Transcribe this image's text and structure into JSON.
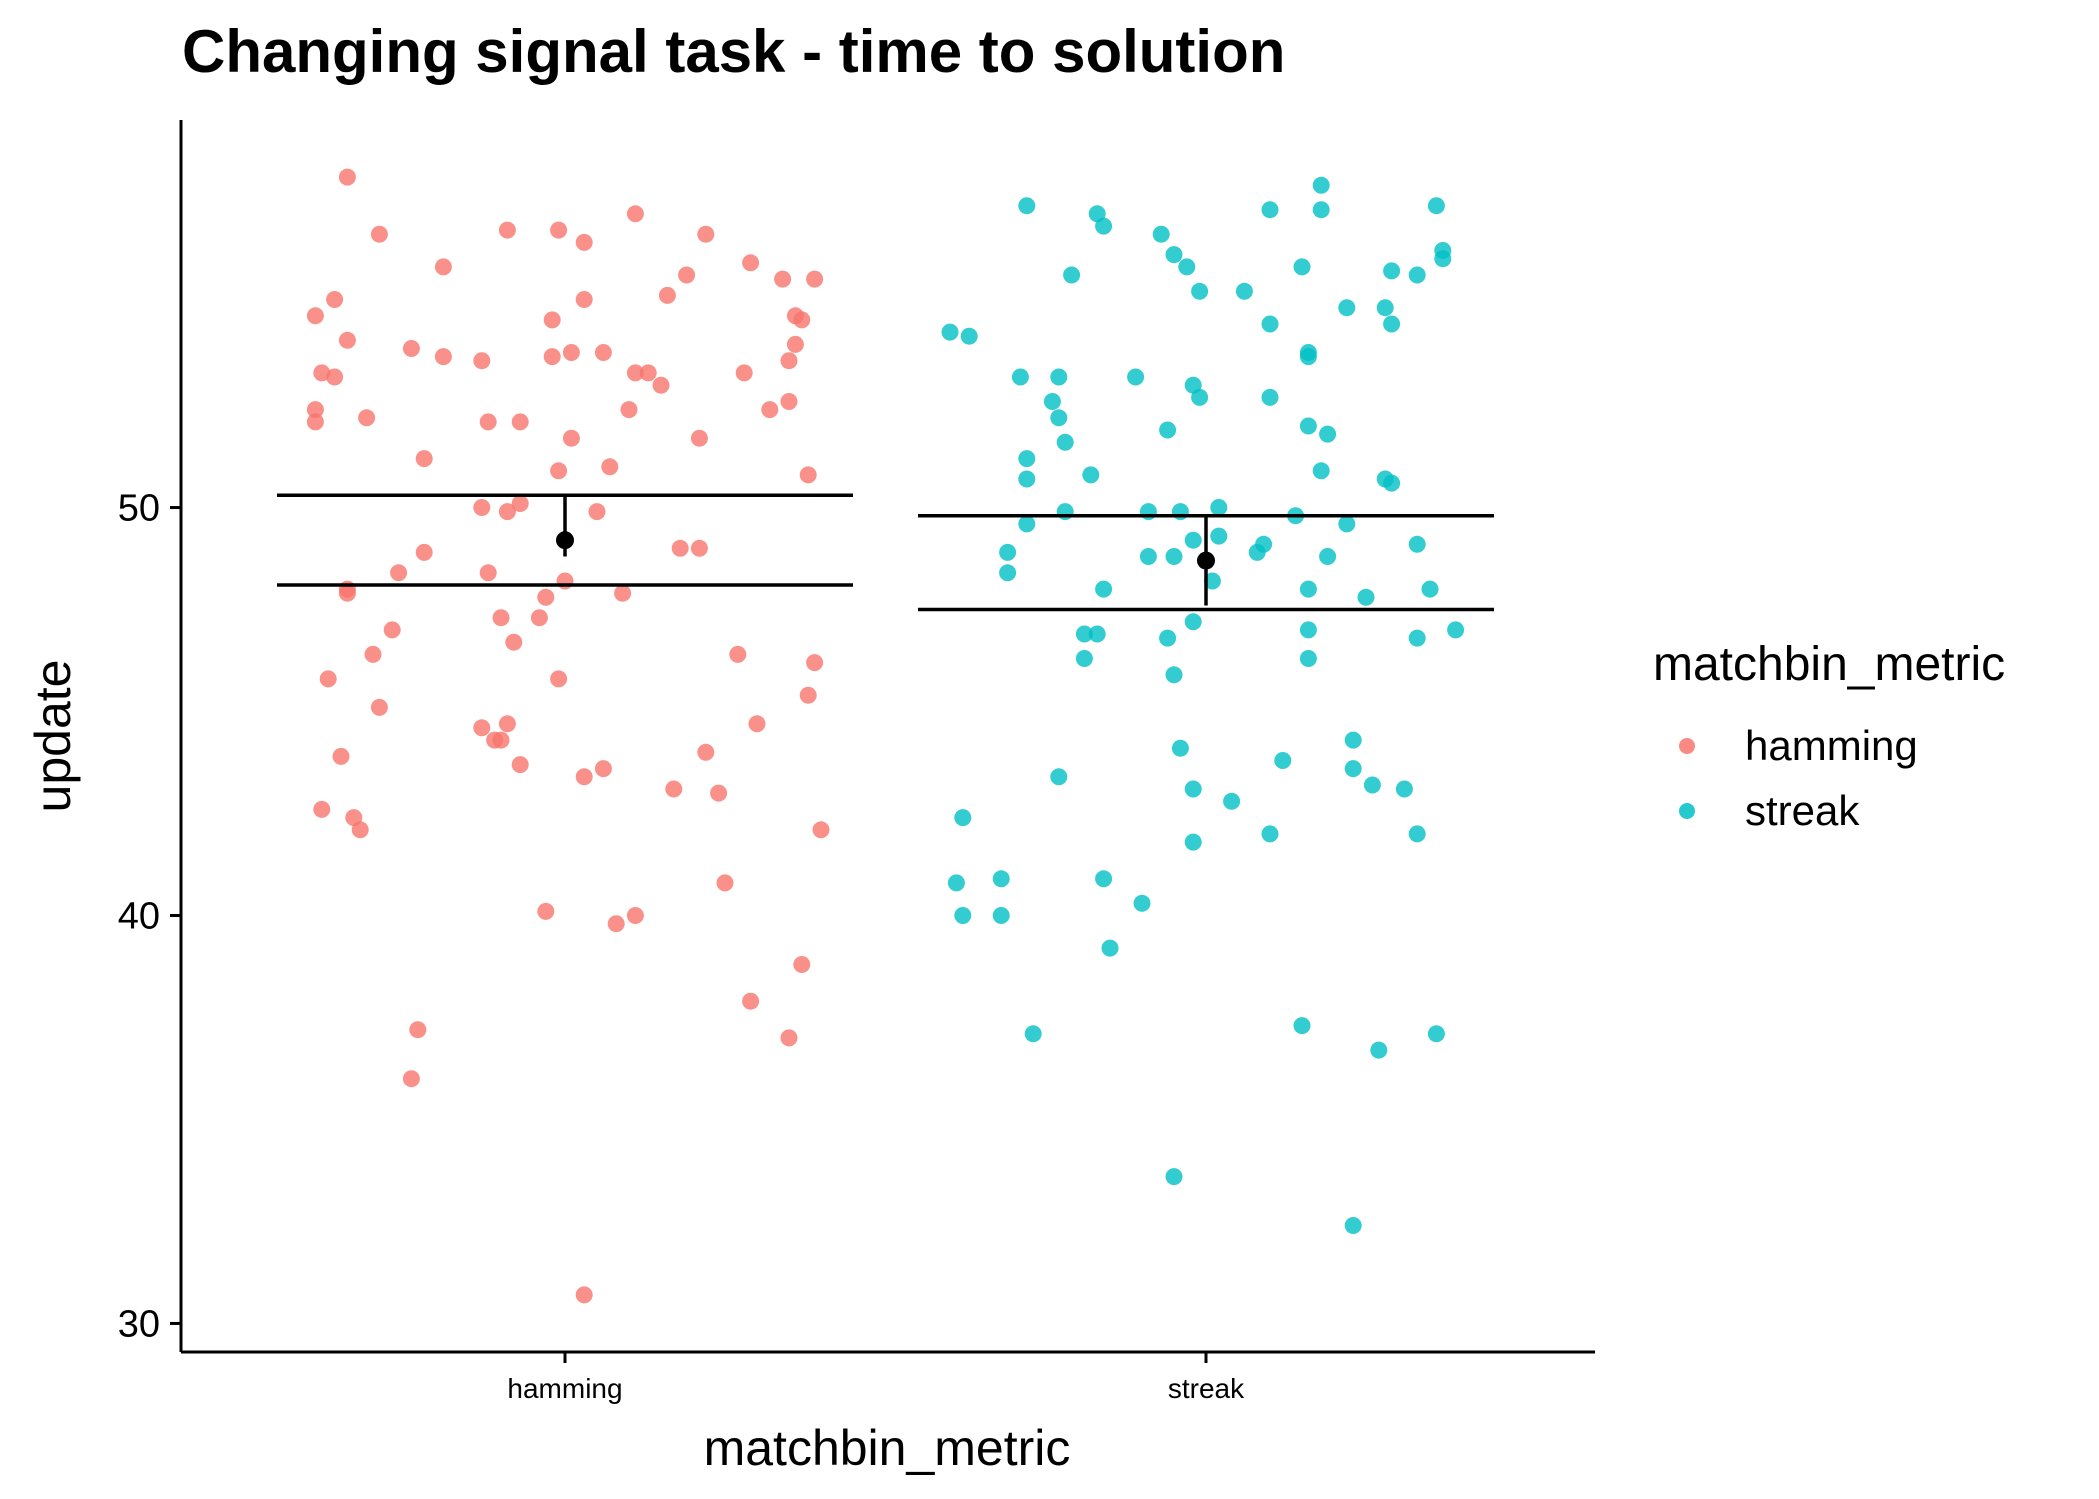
{
  "chart_data": {
    "type": "scatter",
    "title": "Changing signal task - time to solution",
    "xlabel": "matchbin_metric",
    "ylabel": "update",
    "categories": [
      "hamming",
      "streak"
    ],
    "ylim": [
      29.3,
      59.5
    ],
    "yticks": [
      30,
      40,
      50
    ],
    "grid": false,
    "legend": {
      "title": "matchbin_metric",
      "position": "right",
      "entries": [
        {
          "label": "hamming",
          "color": "#F8766D"
        },
        {
          "label": "streak",
          "color": "#00BFC4"
        }
      ]
    },
    "series": [
      {
        "name": "hamming",
        "color": "#F8766D",
        "points": [
          [
            -0.34,
            58.1
          ],
          [
            -0.29,
            56.7
          ],
          [
            -0.19,
            55.9
          ],
          [
            -0.09,
            56.8
          ],
          [
            -0.01,
            56.8
          ],
          [
            0.03,
            56.5
          ],
          [
            0.11,
            57.2
          ],
          [
            0.22,
            56.7
          ],
          [
            0.29,
            56.0
          ],
          [
            0.34,
            55.6
          ],
          [
            0.39,
            55.6
          ],
          [
            0.19,
            55.7
          ],
          [
            0.16,
            55.2
          ],
          [
            0.03,
            55.1
          ],
          [
            -0.02,
            54.6
          ],
          [
            -0.36,
            55.1
          ],
          [
            -0.39,
            54.7
          ],
          [
            0.37,
            54.6
          ],
          [
            0.36,
            54.7
          ],
          [
            -0.34,
            54.1
          ],
          [
            -0.24,
            53.9
          ],
          [
            -0.19,
            53.7
          ],
          [
            -0.13,
            53.6
          ],
          [
            -0.02,
            53.7
          ],
          [
            0.01,
            53.8
          ],
          [
            0.06,
            53.8
          ],
          [
            0.11,
            53.3
          ],
          [
            0.13,
            53.3
          ],
          [
            0.15,
            53.0
          ],
          [
            0.28,
            53.3
          ],
          [
            0.35,
            53.6
          ],
          [
            0.36,
            54.0
          ],
          [
            -0.38,
            53.3
          ],
          [
            -0.36,
            53.2
          ],
          [
            -0.39,
            52.4
          ],
          [
            -0.39,
            52.1
          ],
          [
            -0.31,
            52.2
          ],
          [
            -0.12,
            52.1
          ],
          [
            -0.07,
            52.1
          ],
          [
            0.1,
            52.4
          ],
          [
            0.32,
            52.4
          ],
          [
            0.35,
            52.6
          ],
          [
            0.21,
            51.7
          ],
          [
            0.01,
            51.7
          ],
          [
            -0.22,
            51.2
          ],
          [
            0.07,
            51.0
          ],
          [
            -0.01,
            50.9
          ],
          [
            0.38,
            50.8
          ],
          [
            -0.13,
            50.0
          ],
          [
            -0.09,
            49.9
          ],
          [
            -0.07,
            50.1
          ],
          [
            0.05,
            49.9
          ],
          [
            -0.22,
            48.9
          ],
          [
            0.18,
            49.0
          ],
          [
            0.21,
            49.0
          ],
          [
            -0.26,
            48.4
          ],
          [
            -0.12,
            48.4
          ],
          [
            -0.34,
            48.0
          ],
          [
            -0.34,
            47.9
          ],
          [
            0.0,
            48.2
          ],
          [
            0.09,
            47.9
          ],
          [
            -0.03,
            47.8
          ],
          [
            -0.1,
            47.3
          ],
          [
            -0.04,
            47.3
          ],
          [
            -0.27,
            47.0
          ],
          [
            -0.08,
            46.7
          ],
          [
            -0.3,
            46.4
          ],
          [
            0.27,
            46.4
          ],
          [
            0.39,
            46.2
          ],
          [
            -0.37,
            45.8
          ],
          [
            -0.01,
            45.8
          ],
          [
            0.38,
            45.4
          ],
          [
            -0.29,
            45.1
          ],
          [
            -0.13,
            44.6
          ],
          [
            -0.09,
            44.7
          ],
          [
            -0.1,
            44.3
          ],
          [
            -0.11,
            44.3
          ],
          [
            0.3,
            44.7
          ],
          [
            -0.35,
            43.9
          ],
          [
            -0.07,
            43.7
          ],
          [
            0.22,
            44.0
          ],
          [
            0.06,
            43.6
          ],
          [
            0.03,
            43.4
          ],
          [
            0.17,
            43.1
          ],
          [
            0.24,
            43.0
          ],
          [
            -0.38,
            42.6
          ],
          [
            -0.33,
            42.4
          ],
          [
            -0.32,
            42.1
          ],
          [
            0.4,
            42.1
          ],
          [
            0.25,
            40.8
          ],
          [
            -0.03,
            40.1
          ],
          [
            0.08,
            39.8
          ],
          [
            0.11,
            40.0
          ],
          [
            0.37,
            38.8
          ],
          [
            0.29,
            37.9
          ],
          [
            0.35,
            37.0
          ],
          [
            -0.23,
            37.2
          ],
          [
            -0.24,
            36.0
          ],
          [
            0.03,
            30.7
          ]
        ],
        "mean": 49.2,
        "mean_ci": [
          48.8,
          50.3
        ],
        "bar_range": [
          48.1,
          50.3
        ]
      },
      {
        "name": "streak",
        "color": "#00BFC4",
        "points": [
          [
            0.18,
            57.9
          ],
          [
            -0.28,
            57.4
          ],
          [
            -0.17,
            57.2
          ],
          [
            -0.16,
            56.9
          ],
          [
            -0.07,
            56.7
          ],
          [
            -0.05,
            56.2
          ],
          [
            0.1,
            57.3
          ],
          [
            0.18,
            57.3
          ],
          [
            0.36,
            57.4
          ],
          [
            0.37,
            56.3
          ],
          [
            0.37,
            56.1
          ],
          [
            -0.21,
            55.7
          ],
          [
            -0.03,
            55.9
          ],
          [
            0.15,
            55.9
          ],
          [
            0.29,
            55.8
          ],
          [
            0.33,
            55.7
          ],
          [
            -0.01,
            55.3
          ],
          [
            0.06,
            55.3
          ],
          [
            0.22,
            54.9
          ],
          [
            0.28,
            54.9
          ],
          [
            -0.37,
            54.2
          ],
          [
            -0.4,
            54.3
          ],
          [
            0.1,
            54.5
          ],
          [
            0.29,
            54.5
          ],
          [
            0.16,
            53.8
          ],
          [
            0.16,
            53.7
          ],
          [
            -0.29,
            53.2
          ],
          [
            -0.23,
            53.2
          ],
          [
            -0.11,
            53.2
          ],
          [
            -0.02,
            53.0
          ],
          [
            -0.01,
            52.7
          ],
          [
            0.1,
            52.7
          ],
          [
            -0.24,
            52.6
          ],
          [
            -0.23,
            52.2
          ],
          [
            -0.22,
            51.6
          ],
          [
            -0.06,
            51.9
          ],
          [
            0.16,
            52.0
          ],
          [
            0.19,
            51.8
          ],
          [
            -0.28,
            51.2
          ],
          [
            -0.28,
            50.7
          ],
          [
            -0.18,
            50.8
          ],
          [
            0.18,
            50.9
          ],
          [
            0.28,
            50.7
          ],
          [
            0.29,
            50.6
          ],
          [
            -0.28,
            49.6
          ],
          [
            -0.22,
            49.9
          ],
          [
            -0.09,
            49.9
          ],
          [
            -0.04,
            49.9
          ],
          [
            0.02,
            50.0
          ],
          [
            0.14,
            49.8
          ],
          [
            0.22,
            49.6
          ],
          [
            -0.31,
            48.9
          ],
          [
            -0.31,
            48.4
          ],
          [
            -0.09,
            48.8
          ],
          [
            -0.05,
            48.8
          ],
          [
            -0.02,
            49.2
          ],
          [
            0.02,
            49.3
          ],
          [
            0.08,
            48.9
          ],
          [
            0.09,
            49.1
          ],
          [
            0.19,
            48.8
          ],
          [
            0.33,
            49.1
          ],
          [
            -0.16,
            48.0
          ],
          [
            0.01,
            48.2
          ],
          [
            0.16,
            48.0
          ],
          [
            0.25,
            47.8
          ],
          [
            0.35,
            48.0
          ],
          [
            -0.17,
            46.9
          ],
          [
            -0.19,
            46.9
          ],
          [
            -0.06,
            46.8
          ],
          [
            -0.02,
            47.2
          ],
          [
            0.16,
            47.0
          ],
          [
            0.39,
            47.0
          ],
          [
            -0.19,
            46.3
          ],
          [
            -0.05,
            45.9
          ],
          [
            0.16,
            46.3
          ],
          [
            0.33,
            46.8
          ],
          [
            0.23,
            44.3
          ],
          [
            -0.04,
            44.1
          ],
          [
            0.12,
            43.8
          ],
          [
            -0.23,
            43.4
          ],
          [
            0.23,
            43.6
          ],
          [
            0.26,
            43.2
          ],
          [
            0.31,
            43.1
          ],
          [
            -0.02,
            43.1
          ],
          [
            0.04,
            42.8
          ],
          [
            -0.38,
            42.4
          ],
          [
            -0.02,
            41.8
          ],
          [
            0.1,
            42.0
          ],
          [
            0.33,
            42.0
          ],
          [
            -0.39,
            40.8
          ],
          [
            -0.32,
            40.9
          ],
          [
            -0.16,
            40.9
          ],
          [
            -0.38,
            40.0
          ],
          [
            -0.32,
            40.0
          ],
          [
            -0.1,
            40.3
          ],
          [
            -0.15,
            39.2
          ],
          [
            -0.27,
            37.1
          ],
          [
            0.15,
            37.3
          ],
          [
            0.27,
            36.7
          ],
          [
            0.36,
            37.1
          ],
          [
            -0.05,
            33.6
          ],
          [
            0.23,
            32.4
          ]
        ],
        "mean": 48.7,
        "mean_ci": [
          47.6,
          49.8
        ],
        "bar_range": [
          47.5,
          49.8
        ]
      }
    ]
  }
}
